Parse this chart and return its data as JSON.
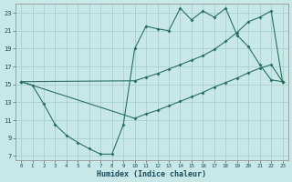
{
  "xlabel": "Humidex (Indice chaleur)",
  "bg_color": "#c8e8e8",
  "grid_color": "#a8d0d0",
  "line_color": "#2a7060",
  "xlim_min": -0.5,
  "xlim_max": 23.5,
  "ylim_min": 6.5,
  "ylim_max": 24.0,
  "xticks": [
    0,
    1,
    2,
    3,
    4,
    5,
    6,
    7,
    8,
    9,
    10,
    11,
    12,
    13,
    14,
    15,
    16,
    17,
    18,
    19,
    20,
    21,
    22,
    23
  ],
  "yticks": [
    7,
    9,
    11,
    13,
    15,
    17,
    19,
    21,
    23
  ],
  "line1_x": [
    0,
    1,
    2,
    3,
    4,
    5,
    6,
    7,
    8,
    9,
    10,
    11,
    12,
    13,
    14,
    15,
    16,
    17,
    18,
    19,
    20,
    21,
    22,
    23
  ],
  "line1_y": [
    15.3,
    14.9,
    12.8,
    10.5,
    9.3,
    8.5,
    7.8,
    7.2,
    7.2,
    10.5,
    19.0,
    21.5,
    21.2,
    21.0,
    23.5,
    22.2,
    23.2,
    22.5,
    23.5,
    20.5,
    19.2,
    17.2,
    15.5,
    15.3
  ],
  "line2_x": [
    0,
    10,
    11,
    12,
    13,
    14,
    15,
    16,
    17,
    18,
    19,
    20,
    21,
    22,
    23
  ],
  "line2_y": [
    15.3,
    15.4,
    15.8,
    16.2,
    16.7,
    17.2,
    17.7,
    18.2,
    18.9,
    19.8,
    20.8,
    22.0,
    22.5,
    23.2,
    15.3
  ],
  "line3_x": [
    0,
    10,
    11,
    12,
    13,
    14,
    15,
    16,
    17,
    18,
    19,
    20,
    21,
    22,
    23
  ],
  "line3_y": [
    15.3,
    11.2,
    11.7,
    12.1,
    12.6,
    13.1,
    13.6,
    14.1,
    14.7,
    15.2,
    15.7,
    16.3,
    16.8,
    17.2,
    15.3
  ]
}
